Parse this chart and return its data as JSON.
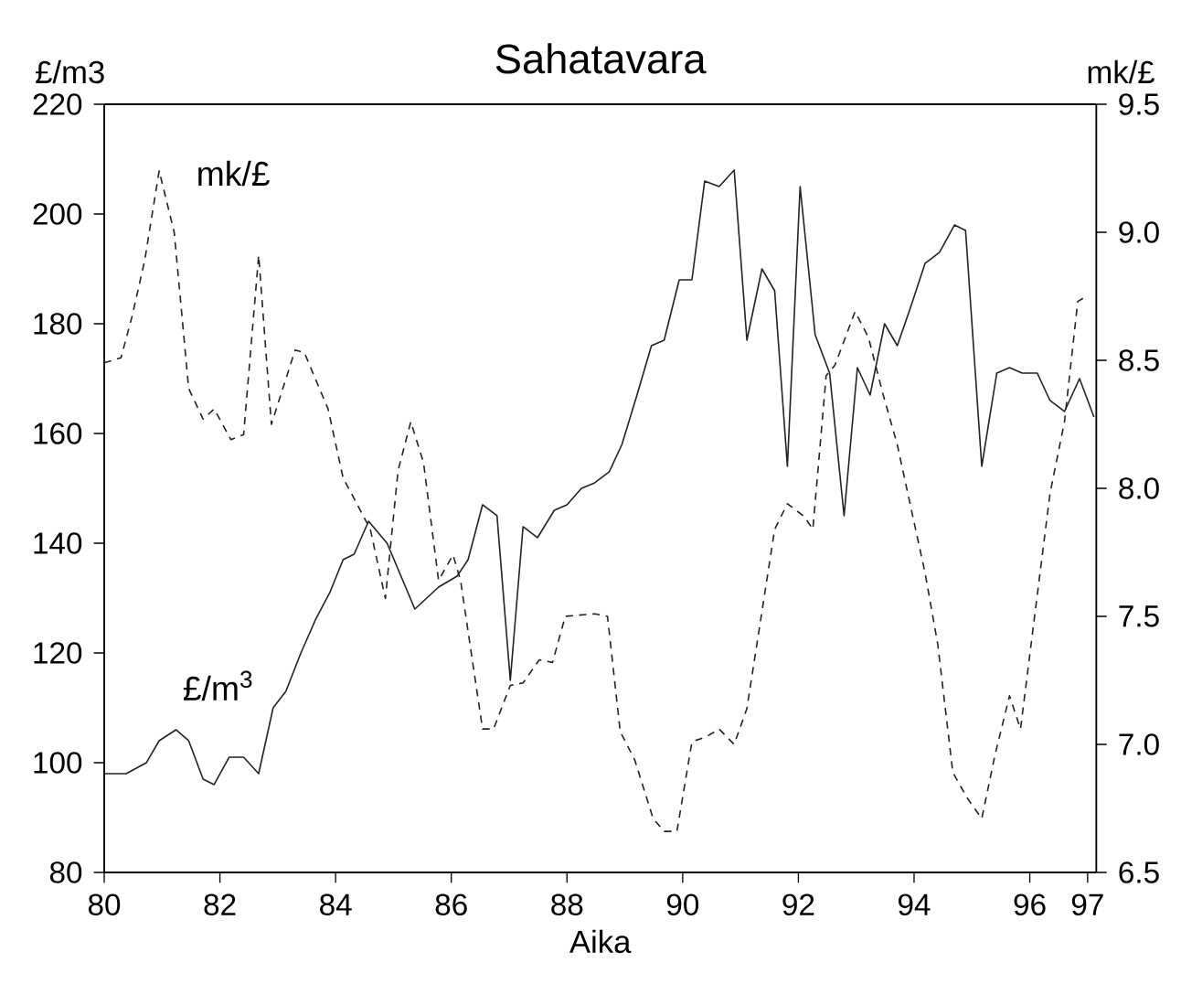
{
  "chart_data": {
    "type": "line",
    "title": "Sahatavara",
    "xlabel": "Aika",
    "ylabel": "£/m3",
    "y2label": "mk/£",
    "xlim": [
      80,
      97.15
    ],
    "xticks": [
      80,
      82,
      84,
      86,
      88,
      90,
      92,
      94,
      96,
      97
    ],
    "ylim": [
      80,
      220
    ],
    "yticks": [
      80,
      100,
      120,
      140,
      160,
      180,
      200,
      220
    ],
    "y2lim": [
      6.5,
      9.5
    ],
    "y2ticks": [
      6.5,
      {
        "value": 7,
        "label": "7.0"
      },
      7.5,
      {
        "value": 8,
        "label": "8.0"
      },
      8.5,
      {
        "value": 9,
        "label": "9.0"
      },
      9.5
    ],
    "series": [
      {
        "name": "£/m$^{3}$",
        "color": "#222222",
        "line_style": "solid",
        "x": [
          80.0,
          80.38,
          80.73,
          80.95,
          81.24,
          81.46,
          81.71,
          81.9,
          82.16,
          82.41,
          82.67,
          82.92,
          83.14,
          83.4,
          83.65,
          83.9,
          84.13,
          84.32,
          84.57,
          84.89,
          85.37,
          85.78,
          86.1,
          86.29,
          86.54,
          86.79,
          87.02,
          87.24,
          87.49,
          87.78,
          88.0,
          88.25,
          88.48,
          88.73,
          88.95,
          89.21,
          89.46,
          89.68,
          89.94,
          90.16,
          90.38,
          90.63,
          90.89,
          91.11,
          91.37,
          91.59,
          91.81,
          92.03,
          92.29,
          92.54,
          92.79,
          93.02,
          93.24,
          93.49,
          93.71,
          93.94,
          94.19,
          94.44,
          94.7,
          94.89,
          95.17,
          95.43,
          95.65,
          95.87,
          96.13,
          96.35,
          96.6,
          96.86,
          97.11
        ],
        "values": [
          98,
          98,
          100,
          104,
          106,
          104,
          97,
          96,
          101,
          101,
          98,
          110,
          113,
          120,
          126,
          131,
          137,
          138,
          144,
          140,
          128,
          132,
          134,
          137,
          147,
          145,
          115,
          143,
          141,
          146,
          147,
          150,
          151,
          153,
          158,
          167,
          176,
          177,
          188,
          188,
          206,
          205,
          208,
          177,
          190,
          186,
          154,
          205,
          178,
          171,
          145,
          172,
          167,
          180,
          176,
          183,
          191,
          193,
          198,
          197,
          154,
          171,
          172,
          171,
          171,
          166,
          164,
          170,
          163
        ]
      },
      {
        "name": "mk/£",
        "color": "#222222",
        "line_style": "dashed",
        "axis": "y2",
        "x": [
          80.0,
          80.29,
          80.48,
          80.7,
          80.95,
          81.21,
          81.46,
          81.71,
          81.9,
          82.19,
          82.41,
          82.67,
          82.89,
          83.3,
          83.46,
          83.87,
          84.13,
          84.32,
          84.6,
          84.86,
          85.08,
          85.3,
          85.52,
          85.78,
          86.03,
          86.16,
          86.54,
          86.73,
          87.02,
          87.24,
          87.52,
          87.75,
          87.97,
          88.48,
          88.7,
          88.92,
          89.17,
          89.49,
          89.68,
          89.9,
          90.16,
          90.41,
          90.63,
          90.89,
          91.11,
          91.33,
          91.59,
          91.81,
          92.1,
          92.25,
          92.48,
          92.63,
          92.98,
          93.21,
          93.46,
          93.71,
          93.94,
          94.19,
          94.41,
          94.67,
          94.92,
          95.17,
          95.4,
          95.65,
          95.84,
          96.1,
          96.35,
          96.6,
          96.83,
          96.98
        ],
        "values": [
          8.49,
          8.51,
          8.67,
          8.89,
          9.24,
          9.0,
          8.39,
          8.27,
          8.31,
          8.19,
          8.21,
          8.91,
          8.25,
          8.54,
          8.53,
          8.31,
          8.04,
          7.96,
          7.84,
          7.57,
          8.07,
          8.26,
          8.1,
          7.64,
          7.74,
          7.64,
          7.06,
          7.06,
          7.23,
          7.24,
          7.33,
          7.32,
          7.5,
          7.51,
          7.5,
          7.05,
          6.94,
          6.71,
          6.66,
          6.66,
          7.01,
          7.03,
          7.06,
          7.0,
          7.14,
          7.46,
          7.84,
          7.94,
          7.89,
          7.84,
          8.44,
          8.48,
          8.69,
          8.59,
          8.37,
          8.17,
          7.93,
          7.67,
          7.39,
          6.89,
          6.79,
          6.71,
          6.96,
          7.19,
          7.06,
          7.53,
          7.98,
          8.26,
          8.73,
          8.75
        ]
      }
    ]
  }
}
